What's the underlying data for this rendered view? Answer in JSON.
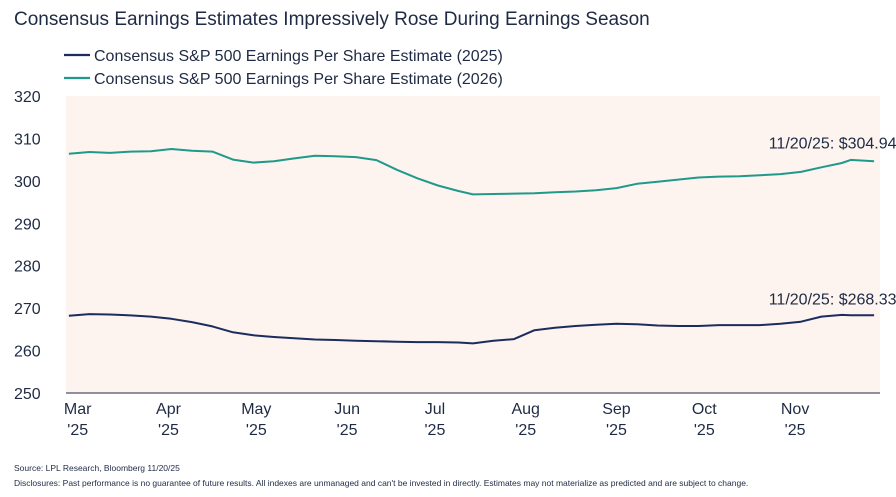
{
  "chart_data": {
    "type": "line",
    "title": "Consensus Earnings Estimates Impressively Rose During Earnings Season",
    "ylim": [
      250,
      320
    ],
    "yticks": [
      250,
      260,
      270,
      280,
      290,
      300,
      310,
      320
    ],
    "x_ticks": [
      {
        "month": "Mar",
        "year": "'25",
        "date": "2025-03-01"
      },
      {
        "month": "Apr",
        "year": "'25",
        "date": "2025-04-01"
      },
      {
        "month": "May",
        "year": "'25",
        "date": "2025-05-01"
      },
      {
        "month": "Jun",
        "year": "'25",
        "date": "2025-06-01"
      },
      {
        "month": "Jul",
        "year": "'25",
        "date": "2025-07-01"
      },
      {
        "month": "Aug",
        "year": "'25",
        "date": "2025-08-01"
      },
      {
        "month": "Sep",
        "year": "'25",
        "date": "2025-09-01"
      },
      {
        "month": "Oct",
        "year": "'25",
        "date": "2025-10-01"
      },
      {
        "month": "Nov",
        "year": "'25",
        "date": "2025-11-01"
      }
    ],
    "xlim": [
      "2025-02-25",
      "2025-11-30"
    ],
    "grid": false,
    "legend_position": "top-left",
    "series": [
      {
        "name": "Consensus S&P 500 Earnings Per Share Estimate (2025)",
        "color": "#1b2d5e",
        "points": [
          [
            "2025-02-26",
            268.2
          ],
          [
            "2025-03-05",
            268.6
          ],
          [
            "2025-03-12",
            268.5
          ],
          [
            "2025-03-19",
            268.3
          ],
          [
            "2025-03-26",
            268.0
          ],
          [
            "2025-04-02",
            267.5
          ],
          [
            "2025-04-09",
            266.7
          ],
          [
            "2025-04-16",
            265.7
          ],
          [
            "2025-04-23",
            264.3
          ],
          [
            "2025-04-30",
            263.6
          ],
          [
            "2025-05-07",
            263.2
          ],
          [
            "2025-05-14",
            262.9
          ],
          [
            "2025-05-21",
            262.6
          ],
          [
            "2025-05-28",
            262.5
          ],
          [
            "2025-06-04",
            262.3
          ],
          [
            "2025-06-11",
            262.2
          ],
          [
            "2025-06-18",
            262.1
          ],
          [
            "2025-06-25",
            262.0
          ],
          [
            "2025-07-02",
            262.0
          ],
          [
            "2025-07-09",
            261.9
          ],
          [
            "2025-07-14",
            261.7
          ],
          [
            "2025-07-21",
            262.3
          ],
          [
            "2025-07-28",
            262.7
          ],
          [
            "2025-08-04",
            264.8
          ],
          [
            "2025-08-11",
            265.4
          ],
          [
            "2025-08-18",
            265.8
          ],
          [
            "2025-08-25",
            266.1
          ],
          [
            "2025-09-01",
            266.3
          ],
          [
            "2025-09-08",
            266.2
          ],
          [
            "2025-09-15",
            265.9
          ],
          [
            "2025-09-22",
            265.8
          ],
          [
            "2025-09-29",
            265.8
          ],
          [
            "2025-10-06",
            266.0
          ],
          [
            "2025-10-13",
            266.0
          ],
          [
            "2025-10-20",
            266.0
          ],
          [
            "2025-10-27",
            266.3
          ],
          [
            "2025-11-03",
            266.8
          ],
          [
            "2025-11-10",
            268.0
          ],
          [
            "2025-11-17",
            268.4
          ],
          [
            "2025-11-20",
            268.33
          ],
          [
            "2025-11-28",
            268.33
          ]
        ]
      },
      {
        "name": "Consensus S&P 500 Earnings Per Share Estimate (2026)",
        "color": "#1f9a8a",
        "points": [
          [
            "2025-02-26",
            306.4
          ],
          [
            "2025-03-05",
            306.8
          ],
          [
            "2025-03-12",
            306.6
          ],
          [
            "2025-03-19",
            306.9
          ],
          [
            "2025-03-26",
            307.0
          ],
          [
            "2025-04-02",
            307.5
          ],
          [
            "2025-04-09",
            307.1
          ],
          [
            "2025-04-16",
            306.9
          ],
          [
            "2025-04-23",
            305.0
          ],
          [
            "2025-04-30",
            304.3
          ],
          [
            "2025-05-07",
            304.6
          ],
          [
            "2025-05-14",
            305.3
          ],
          [
            "2025-05-21",
            305.9
          ],
          [
            "2025-05-28",
            305.8
          ],
          [
            "2025-06-04",
            305.6
          ],
          [
            "2025-06-11",
            304.9
          ],
          [
            "2025-06-18",
            302.6
          ],
          [
            "2025-06-25",
            300.6
          ],
          [
            "2025-07-02",
            298.9
          ],
          [
            "2025-07-09",
            297.6
          ],
          [
            "2025-07-14",
            296.8
          ],
          [
            "2025-07-21",
            296.9
          ],
          [
            "2025-07-28",
            297.0
          ],
          [
            "2025-08-04",
            297.1
          ],
          [
            "2025-08-11",
            297.3
          ],
          [
            "2025-08-18",
            297.5
          ],
          [
            "2025-08-25",
            297.8
          ],
          [
            "2025-09-01",
            298.3
          ],
          [
            "2025-09-08",
            299.3
          ],
          [
            "2025-09-15",
            299.8
          ],
          [
            "2025-09-22",
            300.3
          ],
          [
            "2025-09-29",
            300.8
          ],
          [
            "2025-10-06",
            301.0
          ],
          [
            "2025-10-13",
            301.1
          ],
          [
            "2025-10-20",
            301.3
          ],
          [
            "2025-10-27",
            301.6
          ],
          [
            "2025-11-03",
            302.1
          ],
          [
            "2025-11-10",
            303.2
          ],
          [
            "2025-11-17",
            304.2
          ],
          [
            "2025-11-20",
            304.94
          ],
          [
            "2025-11-28",
            304.6
          ]
        ]
      }
    ],
    "annotations": [
      {
        "text": "11/20/25: $304.94",
        "date": "2025-10-23",
        "value": 307.6
      },
      {
        "text": "11/20/25: $268.33",
        "date": "2025-10-23",
        "value": 270.8
      }
    ],
    "background_color": "#fdf3ef"
  },
  "footer": {
    "source": "Source: LPL Research, Bloomberg 11/20/25",
    "disclosures": "Disclosures: Past performance is no guarantee of future results. All indexes are unmanaged and can't be invested in directly. Estimates may not materialize as predicted and are subject to change."
  }
}
